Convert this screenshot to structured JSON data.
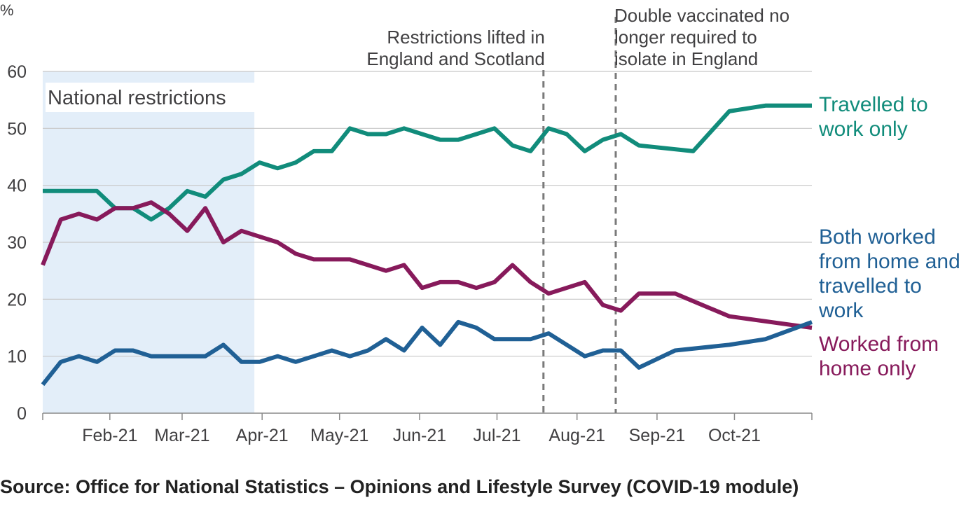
{
  "source": "Source: Office for National Statistics – Opinions and Lifestyle Survey (COVID-19 module)",
  "chart_data": {
    "type": "line",
    "y_unit": "%",
    "ylim": [
      0,
      60
    ],
    "yticks": [
      0,
      10,
      20,
      30,
      40,
      50,
      60
    ],
    "xlim": [
      "2021-01-06",
      "2021-10-31"
    ],
    "xticks": [
      {
        "label": "Feb-21",
        "date": "2021-02-01"
      },
      {
        "label": "Mar-21",
        "date": "2021-03-01"
      },
      {
        "label": "Apr-21",
        "date": "2021-04-01"
      },
      {
        "label": "May-21",
        "date": "2021-05-01"
      },
      {
        "label": "Jun-21",
        "date": "2021-06-01"
      },
      {
        "label": "Jul-21",
        "date": "2021-07-01"
      },
      {
        "label": "Aug-21",
        "date": "2021-08-01"
      },
      {
        "label": "Sep-21",
        "date": "2021-09-01"
      },
      {
        "label": "Oct-21",
        "date": "2021-10-01"
      }
    ],
    "grid": "horizontal",
    "shaded_region": {
      "start": "2021-01-06",
      "end": "2021-03-29",
      "label": "National restrictions",
      "color": "#e3eef9"
    },
    "annotations": [
      {
        "date": "2021-07-19",
        "lines": [
          "Restrictions lifted in",
          "England and Scotland"
        ]
      },
      {
        "date": "2021-08-16",
        "lines": [
          "Double vaccinated no",
          "longer required to",
          "isolate in England"
        ]
      }
    ],
    "series": [
      {
        "key": "travelled",
        "name_lines": [
          "Travelled to",
          "work only"
        ],
        "color": "#118c7b",
        "points": [
          [
            "2021-01-06",
            39
          ],
          [
            "2021-01-13",
            39
          ],
          [
            "2021-01-20",
            39
          ],
          [
            "2021-01-27",
            39
          ],
          [
            "2021-02-03",
            36
          ],
          [
            "2021-02-10",
            36
          ],
          [
            "2021-02-17",
            34
          ],
          [
            "2021-02-24",
            36
          ],
          [
            "2021-03-03",
            39
          ],
          [
            "2021-03-10",
            38
          ],
          [
            "2021-03-17",
            41
          ],
          [
            "2021-03-24",
            42
          ],
          [
            "2021-03-31",
            44
          ],
          [
            "2021-04-07",
            43
          ],
          [
            "2021-04-14",
            44
          ],
          [
            "2021-04-21",
            46
          ],
          [
            "2021-04-28",
            46
          ],
          [
            "2021-05-05",
            50
          ],
          [
            "2021-05-12",
            49
          ],
          [
            "2021-05-19",
            49
          ],
          [
            "2021-05-26",
            50
          ],
          [
            "2021-06-02",
            49
          ],
          [
            "2021-06-09",
            48
          ],
          [
            "2021-06-16",
            48
          ],
          [
            "2021-06-23",
            49
          ],
          [
            "2021-06-30",
            50
          ],
          [
            "2021-07-07",
            47
          ],
          [
            "2021-07-14",
            46
          ],
          [
            "2021-07-21",
            50
          ],
          [
            "2021-07-28",
            49
          ],
          [
            "2021-08-04",
            46
          ],
          [
            "2021-08-11",
            48
          ],
          [
            "2021-08-18",
            49
          ],
          [
            "2021-08-25",
            47
          ],
          [
            "2021-09-15",
            46
          ],
          [
            "2021-09-29",
            53
          ],
          [
            "2021-10-13",
            54
          ],
          [
            "2021-10-31",
            54
          ]
        ]
      },
      {
        "key": "worked_home",
        "name_lines": [
          "Worked from",
          "home only"
        ],
        "color": "#871a5b",
        "points": [
          [
            "2021-01-06",
            26
          ],
          [
            "2021-01-13",
            34
          ],
          [
            "2021-01-20",
            35
          ],
          [
            "2021-01-27",
            34
          ],
          [
            "2021-02-03",
            36
          ],
          [
            "2021-02-10",
            36
          ],
          [
            "2021-02-17",
            37
          ],
          [
            "2021-02-24",
            35
          ],
          [
            "2021-03-03",
            32
          ],
          [
            "2021-03-10",
            36
          ],
          [
            "2021-03-17",
            30
          ],
          [
            "2021-03-24",
            32
          ],
          [
            "2021-03-31",
            31
          ],
          [
            "2021-04-07",
            30
          ],
          [
            "2021-04-14",
            28
          ],
          [
            "2021-04-21",
            27
          ],
          [
            "2021-04-28",
            27
          ],
          [
            "2021-05-05",
            27
          ],
          [
            "2021-05-12",
            26
          ],
          [
            "2021-05-19",
            25
          ],
          [
            "2021-05-26",
            26
          ],
          [
            "2021-06-02",
            22
          ],
          [
            "2021-06-09",
            23
          ],
          [
            "2021-06-16",
            23
          ],
          [
            "2021-06-23",
            22
          ],
          [
            "2021-06-30",
            23
          ],
          [
            "2021-07-07",
            26
          ],
          [
            "2021-07-14",
            23
          ],
          [
            "2021-07-21",
            21
          ],
          [
            "2021-08-04",
            23
          ],
          [
            "2021-08-11",
            19
          ],
          [
            "2021-08-18",
            18
          ],
          [
            "2021-08-25",
            21
          ],
          [
            "2021-09-08",
            21
          ],
          [
            "2021-09-29",
            17
          ],
          [
            "2021-10-31",
            15
          ]
        ]
      },
      {
        "key": "both",
        "name_lines": [
          "Both worked",
          "from home and",
          "travelled to",
          "work"
        ],
        "color": "#206095",
        "points": [
          [
            "2021-01-06",
            5
          ],
          [
            "2021-01-13",
            9
          ],
          [
            "2021-01-20",
            10
          ],
          [
            "2021-01-27",
            9
          ],
          [
            "2021-02-03",
            11
          ],
          [
            "2021-02-10",
            11
          ],
          [
            "2021-02-17",
            10
          ],
          [
            "2021-02-24",
            10
          ],
          [
            "2021-03-03",
            10
          ],
          [
            "2021-03-10",
            10
          ],
          [
            "2021-03-17",
            12
          ],
          [
            "2021-03-24",
            9
          ],
          [
            "2021-03-31",
            9
          ],
          [
            "2021-04-07",
            10
          ],
          [
            "2021-04-14",
            9
          ],
          [
            "2021-04-21",
            10
          ],
          [
            "2021-04-28",
            11
          ],
          [
            "2021-05-05",
            10
          ],
          [
            "2021-05-12",
            11
          ],
          [
            "2021-05-19",
            13
          ],
          [
            "2021-05-26",
            11
          ],
          [
            "2021-06-02",
            15
          ],
          [
            "2021-06-09",
            12
          ],
          [
            "2021-06-16",
            16
          ],
          [
            "2021-06-23",
            15
          ],
          [
            "2021-06-30",
            13
          ],
          [
            "2021-07-07",
            13
          ],
          [
            "2021-07-14",
            13
          ],
          [
            "2021-07-21",
            14
          ],
          [
            "2021-08-04",
            10
          ],
          [
            "2021-08-11",
            11
          ],
          [
            "2021-08-18",
            11
          ],
          [
            "2021-08-25",
            8
          ],
          [
            "2021-09-08",
            11
          ],
          [
            "2021-09-29",
            12
          ],
          [
            "2021-10-13",
            13
          ],
          [
            "2021-10-31",
            16
          ]
        ]
      }
    ]
  }
}
